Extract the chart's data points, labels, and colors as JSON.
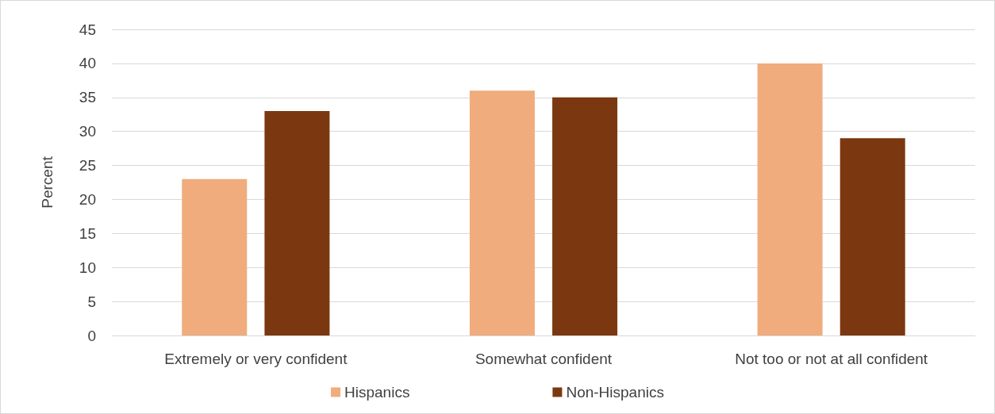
{
  "chart_data": {
    "type": "bar",
    "ylabel": "Percent",
    "categories": [
      "Extremely or very confident",
      "Somewhat confident",
      "Not too or not at all confident"
    ],
    "series": [
      {
        "name": "Hispanics",
        "color": "#f0ac7c",
        "values": [
          23,
          36,
          40
        ]
      },
      {
        "name": "Non-Hispanics",
        "color": "#7b3810",
        "values": [
          33,
          35,
          29
        ]
      }
    ],
    "ylim": [
      0,
      45
    ],
    "yticks": [
      0,
      5,
      10,
      15,
      20,
      25,
      30,
      35,
      40,
      45
    ],
    "grid": "y",
    "legend": "bottom"
  }
}
